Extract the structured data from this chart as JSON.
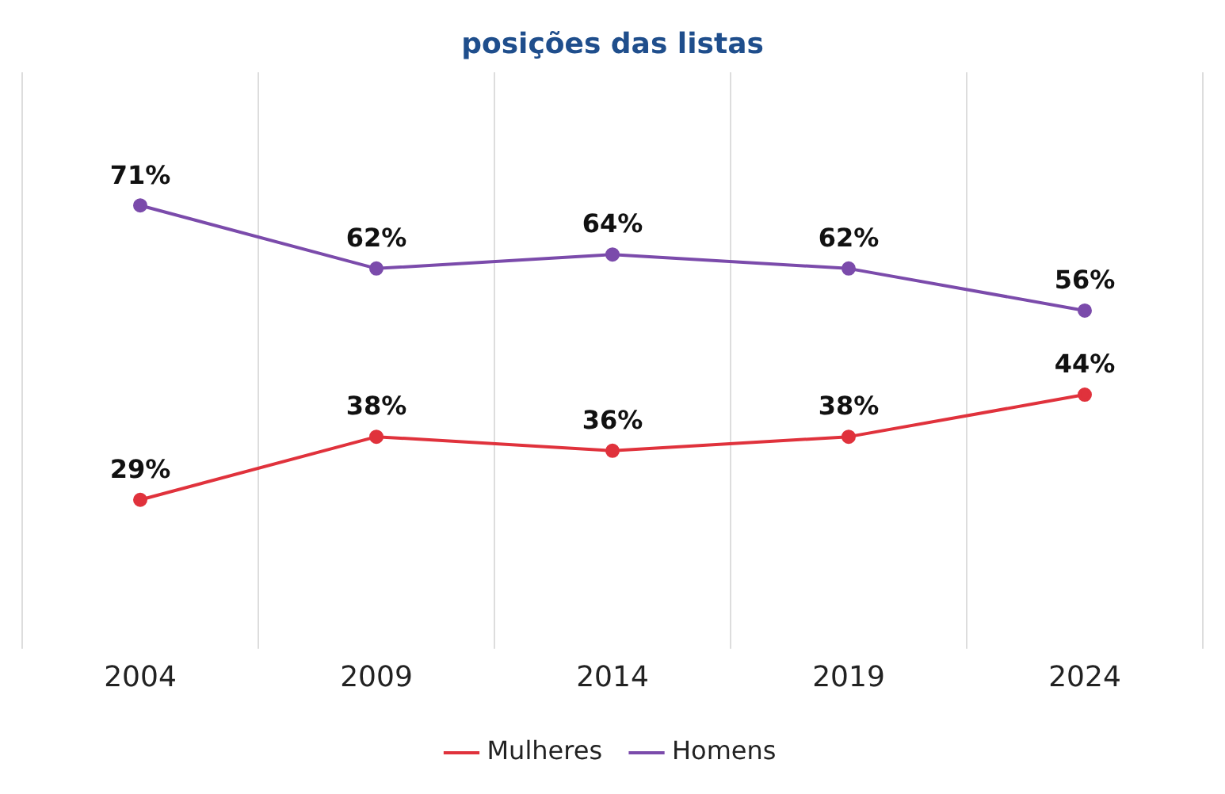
{
  "chart_data": {
    "type": "line",
    "title": "posições das listas",
    "categories": [
      "2004",
      "2009",
      "2014",
      "2019",
      "2024"
    ],
    "series": [
      {
        "name": "Mulheres",
        "color": "#e0323c",
        "values": [
          29,
          38,
          36,
          38,
          44
        ],
        "value_labels": [
          "29%",
          "38%",
          "36%",
          "38%",
          "44%"
        ]
      },
      {
        "name": "Homens",
        "color": "#7b4bab",
        "values": [
          71,
          62,
          64,
          62,
          56
        ],
        "value_labels": [
          "71%",
          "62%",
          "64%",
          "62%",
          "56%"
        ]
      }
    ],
    "tick_labels": "x",
    "grid": "x",
    "legend": "bottom",
    "marker": "circle",
    "line_style": "solid"
  }
}
